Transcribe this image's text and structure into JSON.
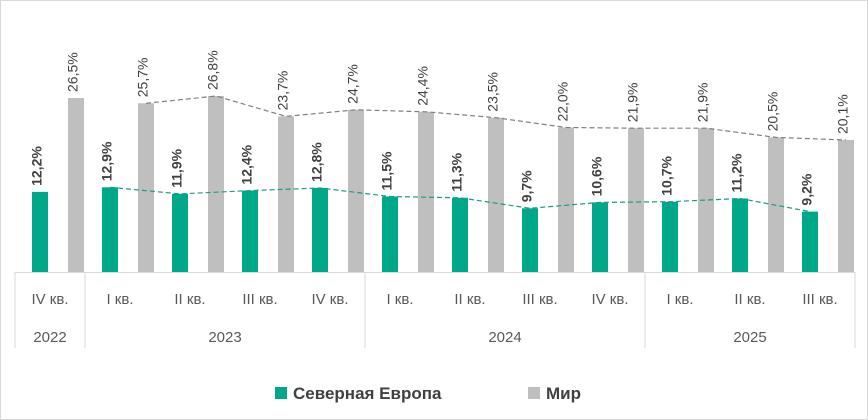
{
  "chart_data": {
    "type": "bar",
    "categories": [
      "IV кв.",
      "I кв.",
      "II кв.",
      "III кв.",
      "IV кв.",
      "I кв.",
      "II кв.",
      "III кв.",
      "IV кв.",
      "I кв.",
      "II кв.",
      "III кв."
    ],
    "groups": [
      {
        "label": "2022",
        "count": 1
      },
      {
        "label": "2023",
        "count": 4
      },
      {
        "label": "2024",
        "count": 4
      },
      {
        "label": "2025",
        "count": 3
      }
    ],
    "series": [
      {
        "name": "Северная Европа",
        "color": "#00a88a",
        "values": [
          12.2,
          12.9,
          11.9,
          12.4,
          12.8,
          11.5,
          11.3,
          9.7,
          10.6,
          10.7,
          11.2,
          9.2
        ],
        "labels": [
          "12,2%",
          "12,9%",
          "11,9%",
          "12,4%",
          "12,8%",
          "11,5%",
          "11,3%",
          "9,7%",
          "10,6%",
          "10,7%",
          "11,2%",
          "9,2%"
        ],
        "trend_color": "#1a9c85"
      },
      {
        "name": "Мир",
        "color": "#bfbfbf",
        "values": [
          26.5,
          25.7,
          26.8,
          23.7,
          24.7,
          24.4,
          23.5,
          22.0,
          21.9,
          21.9,
          20.5,
          20.1
        ],
        "labels": [
          "26,5%",
          "25,7%",
          "26,8%",
          "23,7%",
          "24,7%",
          "24,4%",
          "23,5%",
          "22,0%",
          "21,9%",
          "21,9%",
          "20,5%",
          "20,1%"
        ],
        "trend_color": "#808080"
      }
    ],
    "ylim": [
      0,
      27
    ],
    "legend_position": "bottom",
    "trendlines": "dashed, starting from second category"
  }
}
